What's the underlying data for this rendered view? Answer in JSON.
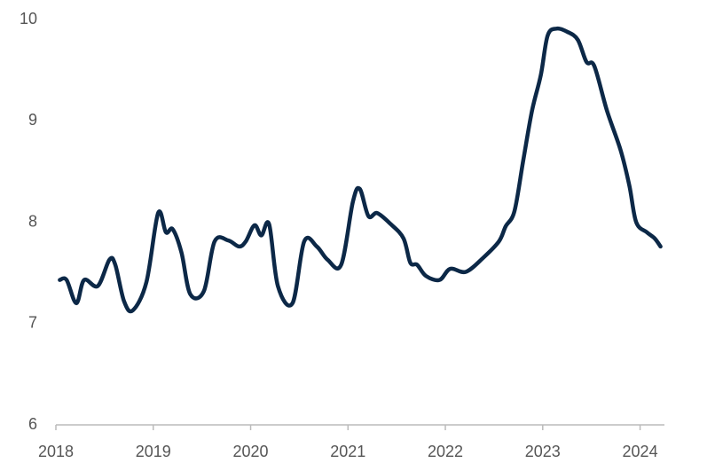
{
  "chart_data": {
    "type": "line",
    "x": [
      2018.04,
      2018.11,
      2018.21,
      2018.29,
      2018.43,
      2018.55,
      2018.61,
      2018.7,
      2018.79,
      2018.93,
      2019.05,
      2019.13,
      2019.2,
      2019.29,
      2019.38,
      2019.52,
      2019.63,
      2019.77,
      2019.88,
      2019.95,
      2020.04,
      2020.11,
      2020.19,
      2020.28,
      2020.43,
      2020.55,
      2020.68,
      2020.79,
      2020.93,
      2021.05,
      2021.12,
      2021.21,
      2021.3,
      2021.44,
      2021.57,
      2021.64,
      2021.71,
      2021.8,
      2021.94,
      2022.05,
      2022.21,
      2022.39,
      2022.55,
      2022.62,
      2022.71,
      2022.8,
      2022.89,
      2022.98,
      2023.05,
      2023.14,
      2023.25,
      2023.36,
      2023.45,
      2023.53,
      2023.66,
      2023.8,
      2023.89,
      2023.96,
      2024.07,
      2024.15,
      2024.21
    ],
    "series": [
      {
        "color": "#0c2847",
        "values": [
          7.43,
          7.43,
          7.2,
          7.43,
          7.37,
          7.63,
          7.58,
          7.22,
          7.13,
          7.41,
          8.09,
          7.9,
          7.93,
          7.7,
          7.29,
          7.32,
          7.81,
          7.82,
          7.76,
          7.81,
          7.97,
          7.87,
          7.98,
          7.37,
          7.2,
          7.81,
          7.76,
          7.63,
          7.58,
          8.2,
          8.33,
          8.06,
          8.09,
          7.98,
          7.84,
          7.6,
          7.58,
          7.47,
          7.43,
          7.54,
          7.51,
          7.65,
          7.81,
          7.96,
          8.11,
          8.61,
          9.1,
          9.45,
          9.84,
          9.91,
          9.88,
          9.8,
          9.58,
          9.54,
          9.1,
          8.71,
          8.36,
          8.0,
          7.9,
          7.84,
          7.76
        ]
      }
    ],
    "xlim": [
      2018,
      2024.25
    ],
    "xticks": [
      2018,
      2019,
      2020,
      2021,
      2022,
      2023,
      2024
    ],
    "ylim": [
      6,
      10
    ],
    "yticks": [
      6,
      7,
      8,
      9,
      10
    ],
    "grid": false
  }
}
